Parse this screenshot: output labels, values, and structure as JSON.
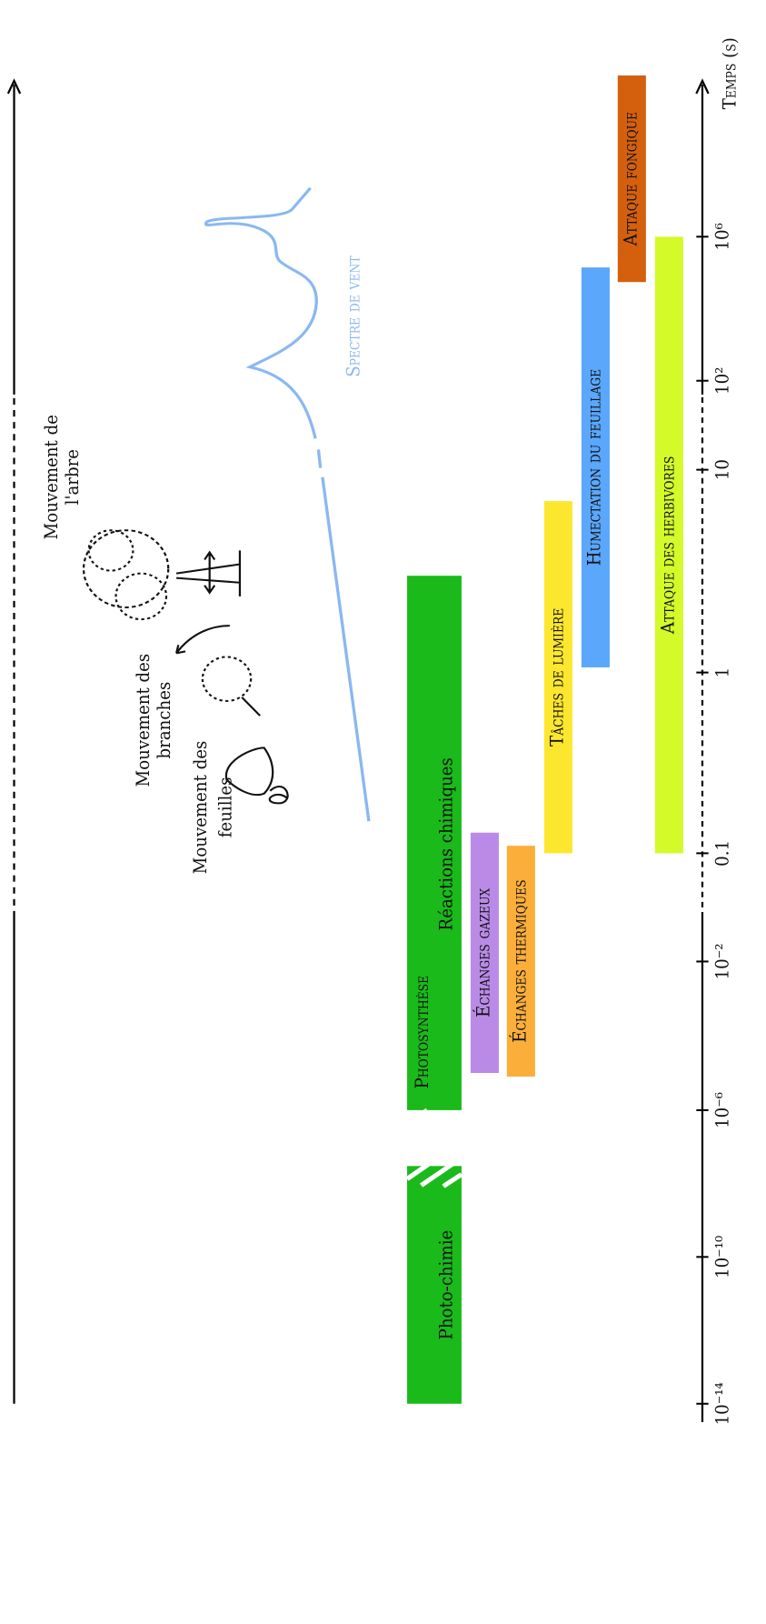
{
  "chart_data": {
    "type": "range-bar",
    "axis_label": "Temps (s)",
    "log_scale": true,
    "yticks": [
      {
        "value": 1e-14,
        "label": "10⁻¹⁴"
      },
      {
        "value": 1e-10,
        "label": "10⁻¹⁰"
      },
      {
        "value": 1e-06,
        "label": "10⁻⁶"
      },
      {
        "value": 0.01,
        "label": "10⁻²"
      },
      0.1,
      1,
      10,
      {
        "value": 100,
        "label": "10²"
      },
      {
        "value": 1000000,
        "label": "10⁶"
      }
    ],
    "bars": [
      {
        "label": "Photo-chimie",
        "color": "#1aba1a",
        "start": 1e-14,
        "end": 3e-08
      },
      {
        "label": "Photosynthèse",
        "sublabel": "Réactions chimiques",
        "color": "#1aba1a",
        "start": 1e-06,
        "end": 3
      },
      {
        "label": "Échanges gazeux",
        "color": "#b98be6",
        "start": 1e-05,
        "end": 0.13
      },
      {
        "label": "Échanges thermiques",
        "color": "#fbae3a",
        "start": 8e-06,
        "end": 0.11
      },
      {
        "label": "Tâches de lumière",
        "color": "#fde72e",
        "start": 0.1,
        "end": 7
      },
      {
        "label": "Humectation du feuillage",
        "color": "#5aa7fb",
        "start": 1.06,
        "end": 140000
      },
      {
        "label": "Attaque fongique",
        "color": "#d4600e",
        "start": 55000,
        "end": 30000000000
      },
      {
        "label": "Attaque des herbivores",
        "color": "#d4fa2a",
        "start": 0.1,
        "end": 1000000
      }
    ],
    "annotations": {
      "wind": "Spectre de vent",
      "tree": [
        "Mouvement de",
        "l'arbre"
      ],
      "branches": [
        "Mouvement des",
        "branches"
      ],
      "leaves": [
        "Mouvement des",
        "feuilles"
      ]
    }
  }
}
